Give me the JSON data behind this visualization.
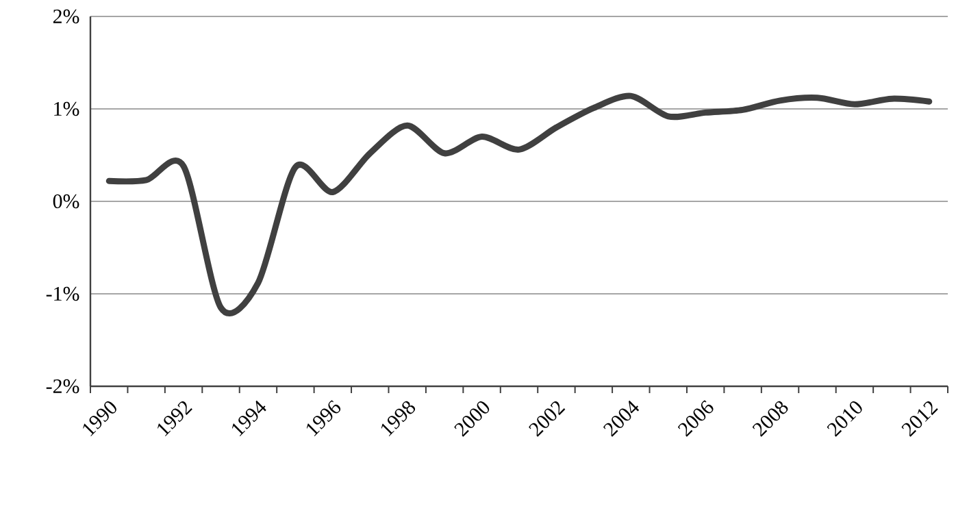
{
  "chart_data": {
    "type": "line",
    "categories": [
      "1990",
      null,
      "1992",
      null,
      "1994",
      null,
      "1996",
      null,
      "1998",
      null,
      "2000",
      null,
      "2002",
      null,
      "2004",
      null,
      "2006",
      null,
      "2008",
      null,
      "2010",
      null,
      "2012"
    ],
    "series": [
      {
        "color": "#404040",
        "values": [
          0.22,
          0.23,
          0.38,
          -1.15,
          -0.88,
          0.37,
          0.1,
          0.52,
          0.82,
          0.52,
          0.7,
          0.56,
          0.8,
          1.01,
          1.14,
          0.92,
          0.96,
          0.99,
          1.09,
          1.12,
          1.05,
          1.11,
          1.08
        ]
      }
    ],
    "ylim": [
      -2,
      2
    ],
    "yticks": [
      {
        "value": -2,
        "label": "-2%"
      },
      {
        "value": -1,
        "label": "-1%"
      },
      {
        "value": 0,
        "label": "0%"
      },
      {
        "value": 1,
        "label": "1%"
      },
      {
        "value": 2,
        "label": "2%"
      }
    ],
    "grid": "y",
    "line_style": "solid",
    "marker": "none"
  }
}
